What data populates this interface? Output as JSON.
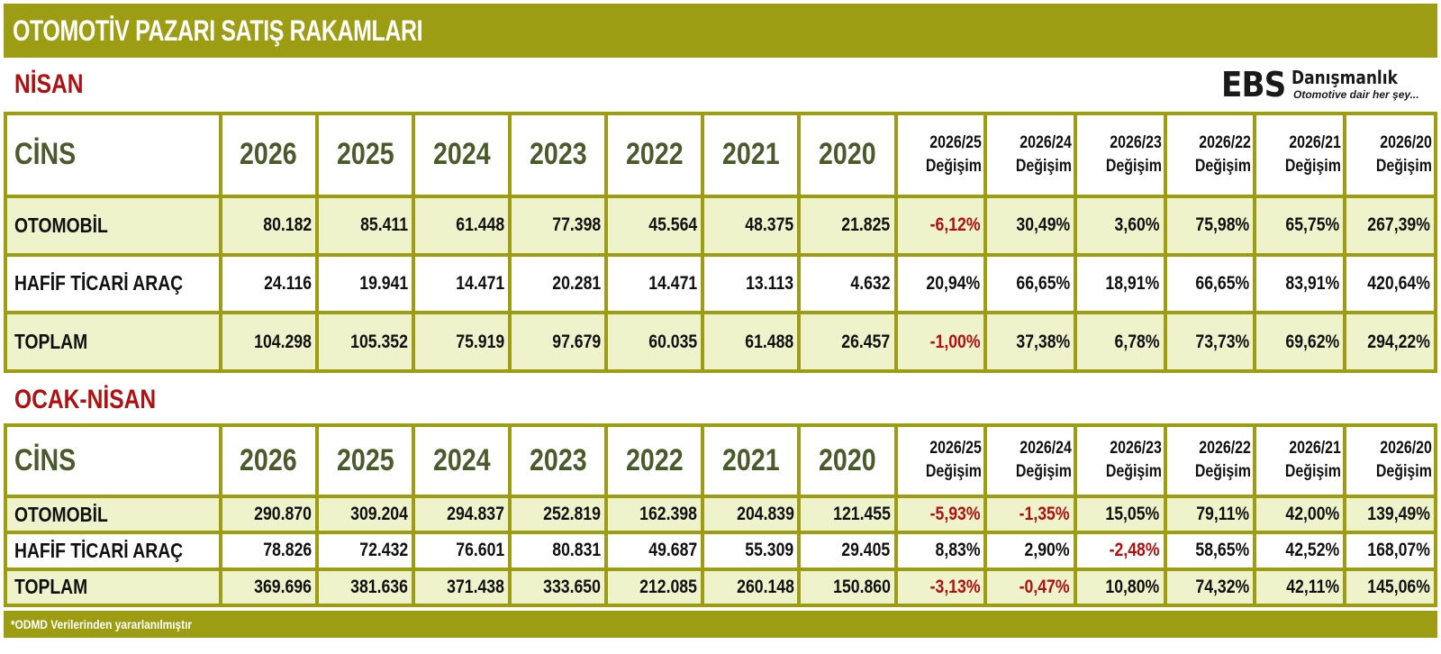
{
  "title": "OTOMOTİV PAZARI SATIŞ RAKAMLARI",
  "logo": {
    "brand": "EBS",
    "name": "Danışmanlık",
    "tagline": "Otomotive dair her şey..."
  },
  "colors": {
    "bar": "#9c9d12",
    "highlight_row": "#eef3cc",
    "negative": "#b01010",
    "header_text": "#4b5a2a"
  },
  "sections": [
    {
      "label": "NİSAN",
      "headers": {
        "cins": "CİNS",
        "years": [
          "2026",
          "2025",
          "2024",
          "2023",
          "2022",
          "2021",
          "2020"
        ],
        "changes": [
          [
            "2026/25",
            "Değişim"
          ],
          [
            "2026/24",
            "Değişim"
          ],
          [
            "2026/23",
            "Değişim"
          ],
          [
            "2026/22",
            "Değişim"
          ],
          [
            "2026/21",
            "Değişim"
          ],
          [
            "2026/20",
            "Değişim"
          ]
        ]
      },
      "rows": [
        {
          "name": "OTOMOBİL",
          "values": [
            "80.182",
            "85.411",
            "61.448",
            "77.398",
            "45.564",
            "48.375",
            "21.825"
          ],
          "changes": [
            "-6,12%",
            "30,49%",
            "3,60%",
            "75,98%",
            "65,75%",
            "267,39%"
          ]
        },
        {
          "name": "HAFİF TİCARİ ARAÇ",
          "values": [
            "24.116",
            "19.941",
            "14.471",
            "20.281",
            "14.471",
            "13.113",
            "4.632"
          ],
          "changes": [
            "20,94%",
            "66,65%",
            "18,91%",
            "66,65%",
            "83,91%",
            "420,64%"
          ]
        },
        {
          "name": "TOPLAM",
          "values": [
            "104.298",
            "105.352",
            "75.919",
            "97.679",
            "60.035",
            "61.488",
            "26.457"
          ],
          "changes": [
            "-1,00%",
            "37,38%",
            "6,78%",
            "73,73%",
            "69,62%",
            "294,22%"
          ]
        }
      ]
    },
    {
      "label": "OCAK-NİSAN",
      "headers": {
        "cins": "CİNS",
        "years": [
          "2026",
          "2025",
          "2024",
          "2023",
          "2022",
          "2021",
          "2020"
        ],
        "changes": [
          [
            "2026/25",
            "Değişim"
          ],
          [
            "2026/24",
            "Değişim"
          ],
          [
            "2026/23",
            "Değişim"
          ],
          [
            "2026/22",
            "Değişim"
          ],
          [
            "2026/21",
            "Değişim"
          ],
          [
            "2026/20",
            "Değişim"
          ]
        ]
      },
      "rows": [
        {
          "name": "OTOMOBİL",
          "values": [
            "290.870",
            "309.204",
            "294.837",
            "252.819",
            "162.398",
            "204.839",
            "121.455"
          ],
          "changes": [
            "-5,93%",
            "-1,35%",
            "15,05%",
            "79,11%",
            "42,00%",
            "139,49%"
          ]
        },
        {
          "name": "HAFİF TİCARİ ARAÇ",
          "values": [
            "78.826",
            "72.432",
            "76.601",
            "80.831",
            "49.687",
            "55.309",
            "29.405"
          ],
          "changes": [
            "8,83%",
            "2,90%",
            "-2,48%",
            "58,65%",
            "42,52%",
            "168,07%"
          ]
        },
        {
          "name": "TOPLAM",
          "values": [
            "369.696",
            "381.636",
            "371.438",
            "333.650",
            "212.085",
            "260.148",
            "150.860"
          ],
          "changes": [
            "-3,13%",
            "-0,47%",
            "10,80%",
            "74,32%",
            "42,11%",
            "145,06%"
          ]
        }
      ]
    }
  ],
  "footer": "*ODMD Verilerinden yararlanılmıştır"
}
